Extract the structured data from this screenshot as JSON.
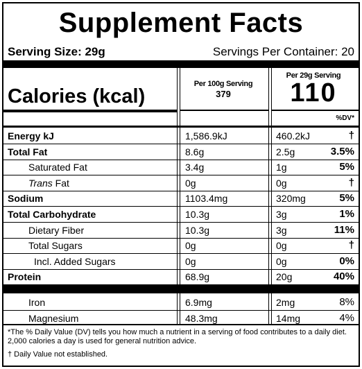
{
  "title": "Supplement Facts",
  "serving_size": "Serving Size: 29g",
  "servings_per_container": "Servings Per Container: 20",
  "calories_label": "Calories (kcal)",
  "per100_header": "Per 100g Serving",
  "per100_calories": "379",
  "per29_header": "Per 29g Serving",
  "per29_calories": "110",
  "dv_header": "%DV*",
  "rows": [
    {
      "name": "Energy kJ",
      "per100": "1,586.9kJ",
      "per29": "460.2kJ",
      "dv": "†"
    },
    {
      "name": "Total Fat",
      "per100": "8.6g",
      "per29": "2.5g",
      "dv": "3.5%"
    },
    {
      "name": "Saturated Fat",
      "per100": "3.4g",
      "per29": "1g",
      "dv": "5%"
    },
    {
      "name_italic": "Trans",
      "name": "Fat",
      "per100": "0g",
      "per29": "0g",
      "dv": "†"
    },
    {
      "name": "Sodium",
      "per100": "1103.4mg",
      "per29": "320mg",
      "dv": "5%"
    },
    {
      "name": "Total Carbohydrate",
      "per100": "10.3g",
      "per29": "3g",
      "dv": "1%"
    },
    {
      "name": "Dietary Fiber",
      "per100": "10.3g",
      "per29": "3g",
      "dv": "11%"
    },
    {
      "name": "Total Sugars",
      "per100": "0g",
      "per29": "0g",
      "dv": "†"
    },
    {
      "name": "Incl. Added Sugars",
      "per100": "0g",
      "per29": "0g",
      "dv": "0%"
    },
    {
      "name": "Protein",
      "per100": "68.9g",
      "per29": "20g",
      "dv": "40%"
    }
  ],
  "minerals": [
    {
      "name": "Iron",
      "per100": "6.9mg",
      "per29": "2mg",
      "dv": "8%"
    },
    {
      "name": "Magnesium",
      "per100": "48.3mg",
      "per29": "14mg",
      "dv": "4%"
    }
  ],
  "footnote": "*The % Daily Value (DV) tells you how much a nutrient in a serving of food contributes to a daily diet. 2,000 calories a day is used for general nutrition advice.",
  "dagger_note": "† Daily Value not established."
}
